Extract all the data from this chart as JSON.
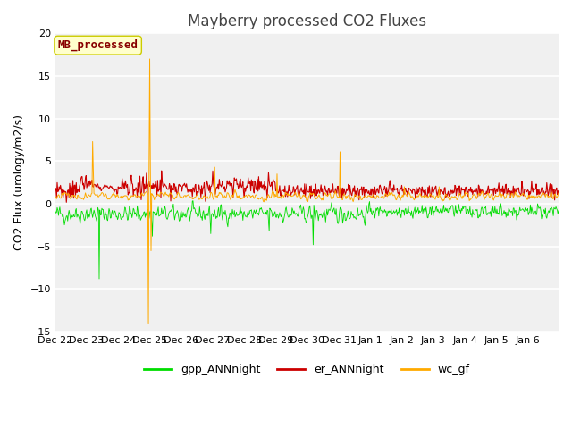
{
  "title": "Mayberry processed CO2 Fluxes",
  "ylabel": "CO2 Flux (urology/m2/s)",
  "ylim": [
    -15,
    20
  ],
  "yticks": [
    -15,
    -10,
    -5,
    0,
    5,
    10,
    15,
    20
  ],
  "fig_bg": "#ffffff",
  "plot_bg": "#f0f0f0",
  "gpp_color": "#00dd00",
  "er_color": "#cc0000",
  "wc_color": "#ffaa00",
  "legend_label": "MB_processed",
  "legend_text_color": "#880000",
  "legend_bg": "#ffffcc",
  "legend_border": "#cccc00",
  "series_labels": [
    "gpp_ANNnight",
    "er_ANNnight",
    "wc_gf"
  ],
  "n_days": 16,
  "n_per_day": 48,
  "seed": 42,
  "title_fontsize": 12,
  "label_fontsize": 9,
  "tick_fontsize": 8,
  "legend_fontsize": 9,
  "x_tick_labels": [
    "Dec 22",
    "Dec 23",
    "Dec 24",
    "Dec 25",
    "Dec 26",
    "Dec 27",
    "Dec 28",
    "Dec 29",
    "Dec 30",
    "Dec 31",
    "Jan 1",
    "Jan 2",
    "Jan 3",
    "Jan 4",
    "Jan 5",
    "Jan 6"
  ]
}
